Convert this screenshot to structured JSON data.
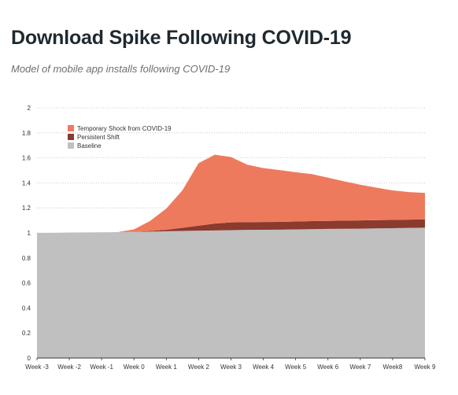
{
  "title": "Download Spike Following COVID-19",
  "subtitle": "Model of mobile app installs following COVID-19",
  "chart_data": {
    "type": "area",
    "stacked": true,
    "categories": [
      "Week -3",
      "Week -2",
      "Week -1",
      "Week 0",
      "Week 1",
      "Week 2",
      "Week 3",
      "Week 4",
      "Week 5",
      "Week 6",
      "Week 7",
      "Week8",
      "Week 9"
    ],
    "x": [
      -3,
      -2.5,
      -2,
      -1.5,
      -1,
      -0.5,
      0,
      0.5,
      1,
      1.5,
      2,
      2.5,
      3,
      3.5,
      4,
      4.5,
      5,
      5.5,
      6,
      6.5,
      7,
      7.5,
      8,
      8.5,
      9
    ],
    "series": [
      {
        "name": "Baseline",
        "color": "#c0c0c0",
        "values": [
          1.0,
          1.0,
          1.003,
          1.004,
          1.005,
          1.006,
          1.008,
          1.01,
          1.013,
          1.016,
          1.018,
          1.02,
          1.022,
          1.024,
          1.025,
          1.026,
          1.028,
          1.03,
          1.032,
          1.033,
          1.034,
          1.036,
          1.038,
          1.04,
          1.042
        ]
      },
      {
        "name": "Persistent Shift",
        "color": "#8b3a2e",
        "values": [
          0,
          0,
          0,
          0,
          0,
          0,
          0,
          0.006,
          0.012,
          0.025,
          0.04,
          0.055,
          0.062,
          0.062,
          0.062,
          0.062,
          0.063,
          0.064,
          0.064,
          0.065,
          0.066,
          0.066,
          0.066,
          0.066,
          0.066
        ]
      },
      {
        "name": "Temporary Shock from COVID-19",
        "color": "#ee7a5e",
        "values": [
          0,
          0,
          0,
          0,
          0,
          0,
          0.02,
          0.08,
          0.17,
          0.3,
          0.5,
          0.55,
          0.523,
          0.46,
          0.431,
          0.414,
          0.394,
          0.376,
          0.346,
          0.314,
          0.285,
          0.26,
          0.236,
          0.22,
          0.212
        ]
      }
    ],
    "ylim": [
      0,
      2
    ],
    "yticks": [
      "0",
      "0.2",
      "0.4",
      "0.6",
      "0.8",
      "1",
      "1.2",
      "1.4",
      "1.6",
      "1.8",
      "2"
    ],
    "xlabel": "",
    "ylabel": "",
    "grid": true,
    "legend_position": "top-left",
    "legend_order": [
      "Temporary Shock from COVID-19",
      "Persistent Shift",
      "Baseline"
    ]
  }
}
